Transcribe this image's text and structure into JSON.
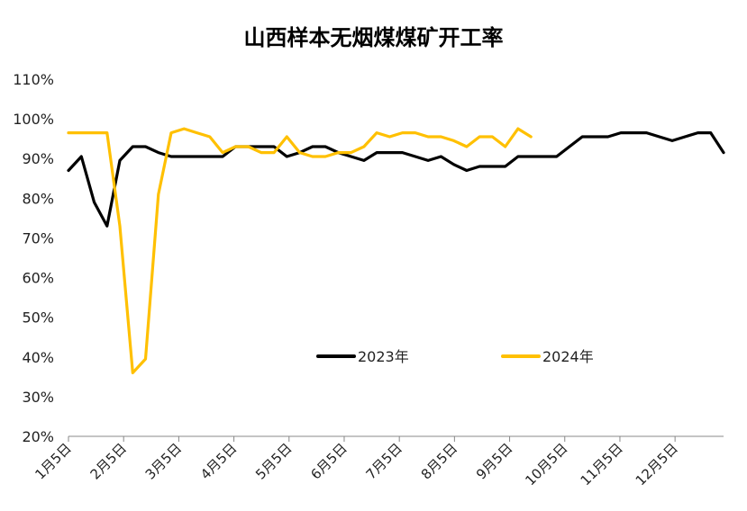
{
  "chart_data": {
    "type": "line",
    "title": "山西样本无烟煤煤矿开工率",
    "xlabel": "",
    "ylabel": "",
    "ylim": [
      20,
      110
    ],
    "yticks": [
      "20%",
      "30%",
      "40%",
      "50%",
      "60%",
      "70%",
      "80%",
      "90%",
      "100%",
      "110%"
    ],
    "categories": [
      "1月5日",
      "2月5日",
      "3月5日",
      "4月5日",
      "5月5日",
      "6月5日",
      "7月5日",
      "8月5日",
      "9月5日",
      "10月5日",
      "11月5日",
      "12月5日"
    ],
    "x_unit": "week index (0 = 1月5日)",
    "legend_position": "center-bottom",
    "series": [
      {
        "name": "2023年",
        "color": "#000000",
        "points": [
          [
            0,
            87
          ],
          [
            1,
            90.5
          ],
          [
            2,
            79
          ],
          [
            3,
            73
          ],
          [
            4,
            89.5
          ],
          [
            5,
            93
          ],
          [
            6,
            93
          ],
          [
            7,
            91.5
          ],
          [
            8,
            90.5
          ],
          [
            9,
            90.5
          ],
          [
            10,
            90.5
          ],
          [
            11,
            90.5
          ],
          [
            12,
            90.5
          ],
          [
            13,
            93
          ],
          [
            14,
            93
          ],
          [
            15,
            93
          ],
          [
            16,
            93
          ],
          [
            17,
            90.5
          ],
          [
            18,
            91.5
          ],
          [
            19,
            93
          ],
          [
            20,
            93
          ],
          [
            21,
            91.5
          ],
          [
            22,
            90.5
          ],
          [
            23,
            89.5
          ],
          [
            24,
            91.5
          ],
          [
            25,
            91.5
          ],
          [
            26,
            91.5
          ],
          [
            27,
            90.5
          ],
          [
            28,
            89.5
          ],
          [
            29,
            90.5
          ],
          [
            30,
            88.5
          ],
          [
            31,
            87
          ],
          [
            32,
            88
          ],
          [
            33,
            88
          ],
          [
            34,
            88
          ],
          [
            35,
            90.5
          ],
          [
            36,
            90.5
          ],
          [
            37,
            90.5
          ],
          [
            38,
            90.5
          ],
          [
            39,
            93
          ],
          [
            40,
            95.5
          ],
          [
            41,
            95.5
          ],
          [
            42,
            95.5
          ],
          [
            43,
            96.5
          ],
          [
            44,
            96.5
          ],
          [
            45,
            96.5
          ],
          [
            46,
            95.5
          ],
          [
            47,
            94.5
          ],
          [
            48,
            95.5
          ],
          [
            49,
            96.5
          ],
          [
            50,
            96.5
          ],
          [
            51,
            91.5
          ]
        ]
      },
      {
        "name": "2024年",
        "color": "#FFC000",
        "points": [
          [
            0,
            96.5
          ],
          [
            1,
            96.5
          ],
          [
            2,
            96.5
          ],
          [
            3,
            96.5
          ],
          [
            4,
            73
          ],
          [
            5,
            36
          ],
          [
            6,
            39.5
          ],
          [
            7,
            81
          ],
          [
            8,
            96.5
          ],
          [
            9,
            97.5
          ],
          [
            10,
            96.5
          ],
          [
            11,
            95.5
          ],
          [
            12,
            91.5
          ],
          [
            13,
            93
          ],
          [
            14,
            93
          ],
          [
            15,
            91.5
          ],
          [
            16,
            91.5
          ],
          [
            17,
            95.5
          ],
          [
            18,
            91.5
          ],
          [
            19,
            90.5
          ],
          [
            20,
            90.5
          ],
          [
            21,
            91.5
          ],
          [
            22,
            91.5
          ],
          [
            23,
            93
          ],
          [
            24,
            96.5
          ],
          [
            25,
            95.5
          ],
          [
            26,
            96.5
          ],
          [
            27,
            96.5
          ],
          [
            28,
            95.5
          ],
          [
            29,
            95.5
          ],
          [
            30,
            94.5
          ],
          [
            31,
            93
          ],
          [
            32,
            95.5
          ],
          [
            33,
            95.5
          ],
          [
            34,
            93
          ],
          [
            35,
            97.5
          ],
          [
            36,
            95.5
          ]
        ]
      }
    ]
  }
}
